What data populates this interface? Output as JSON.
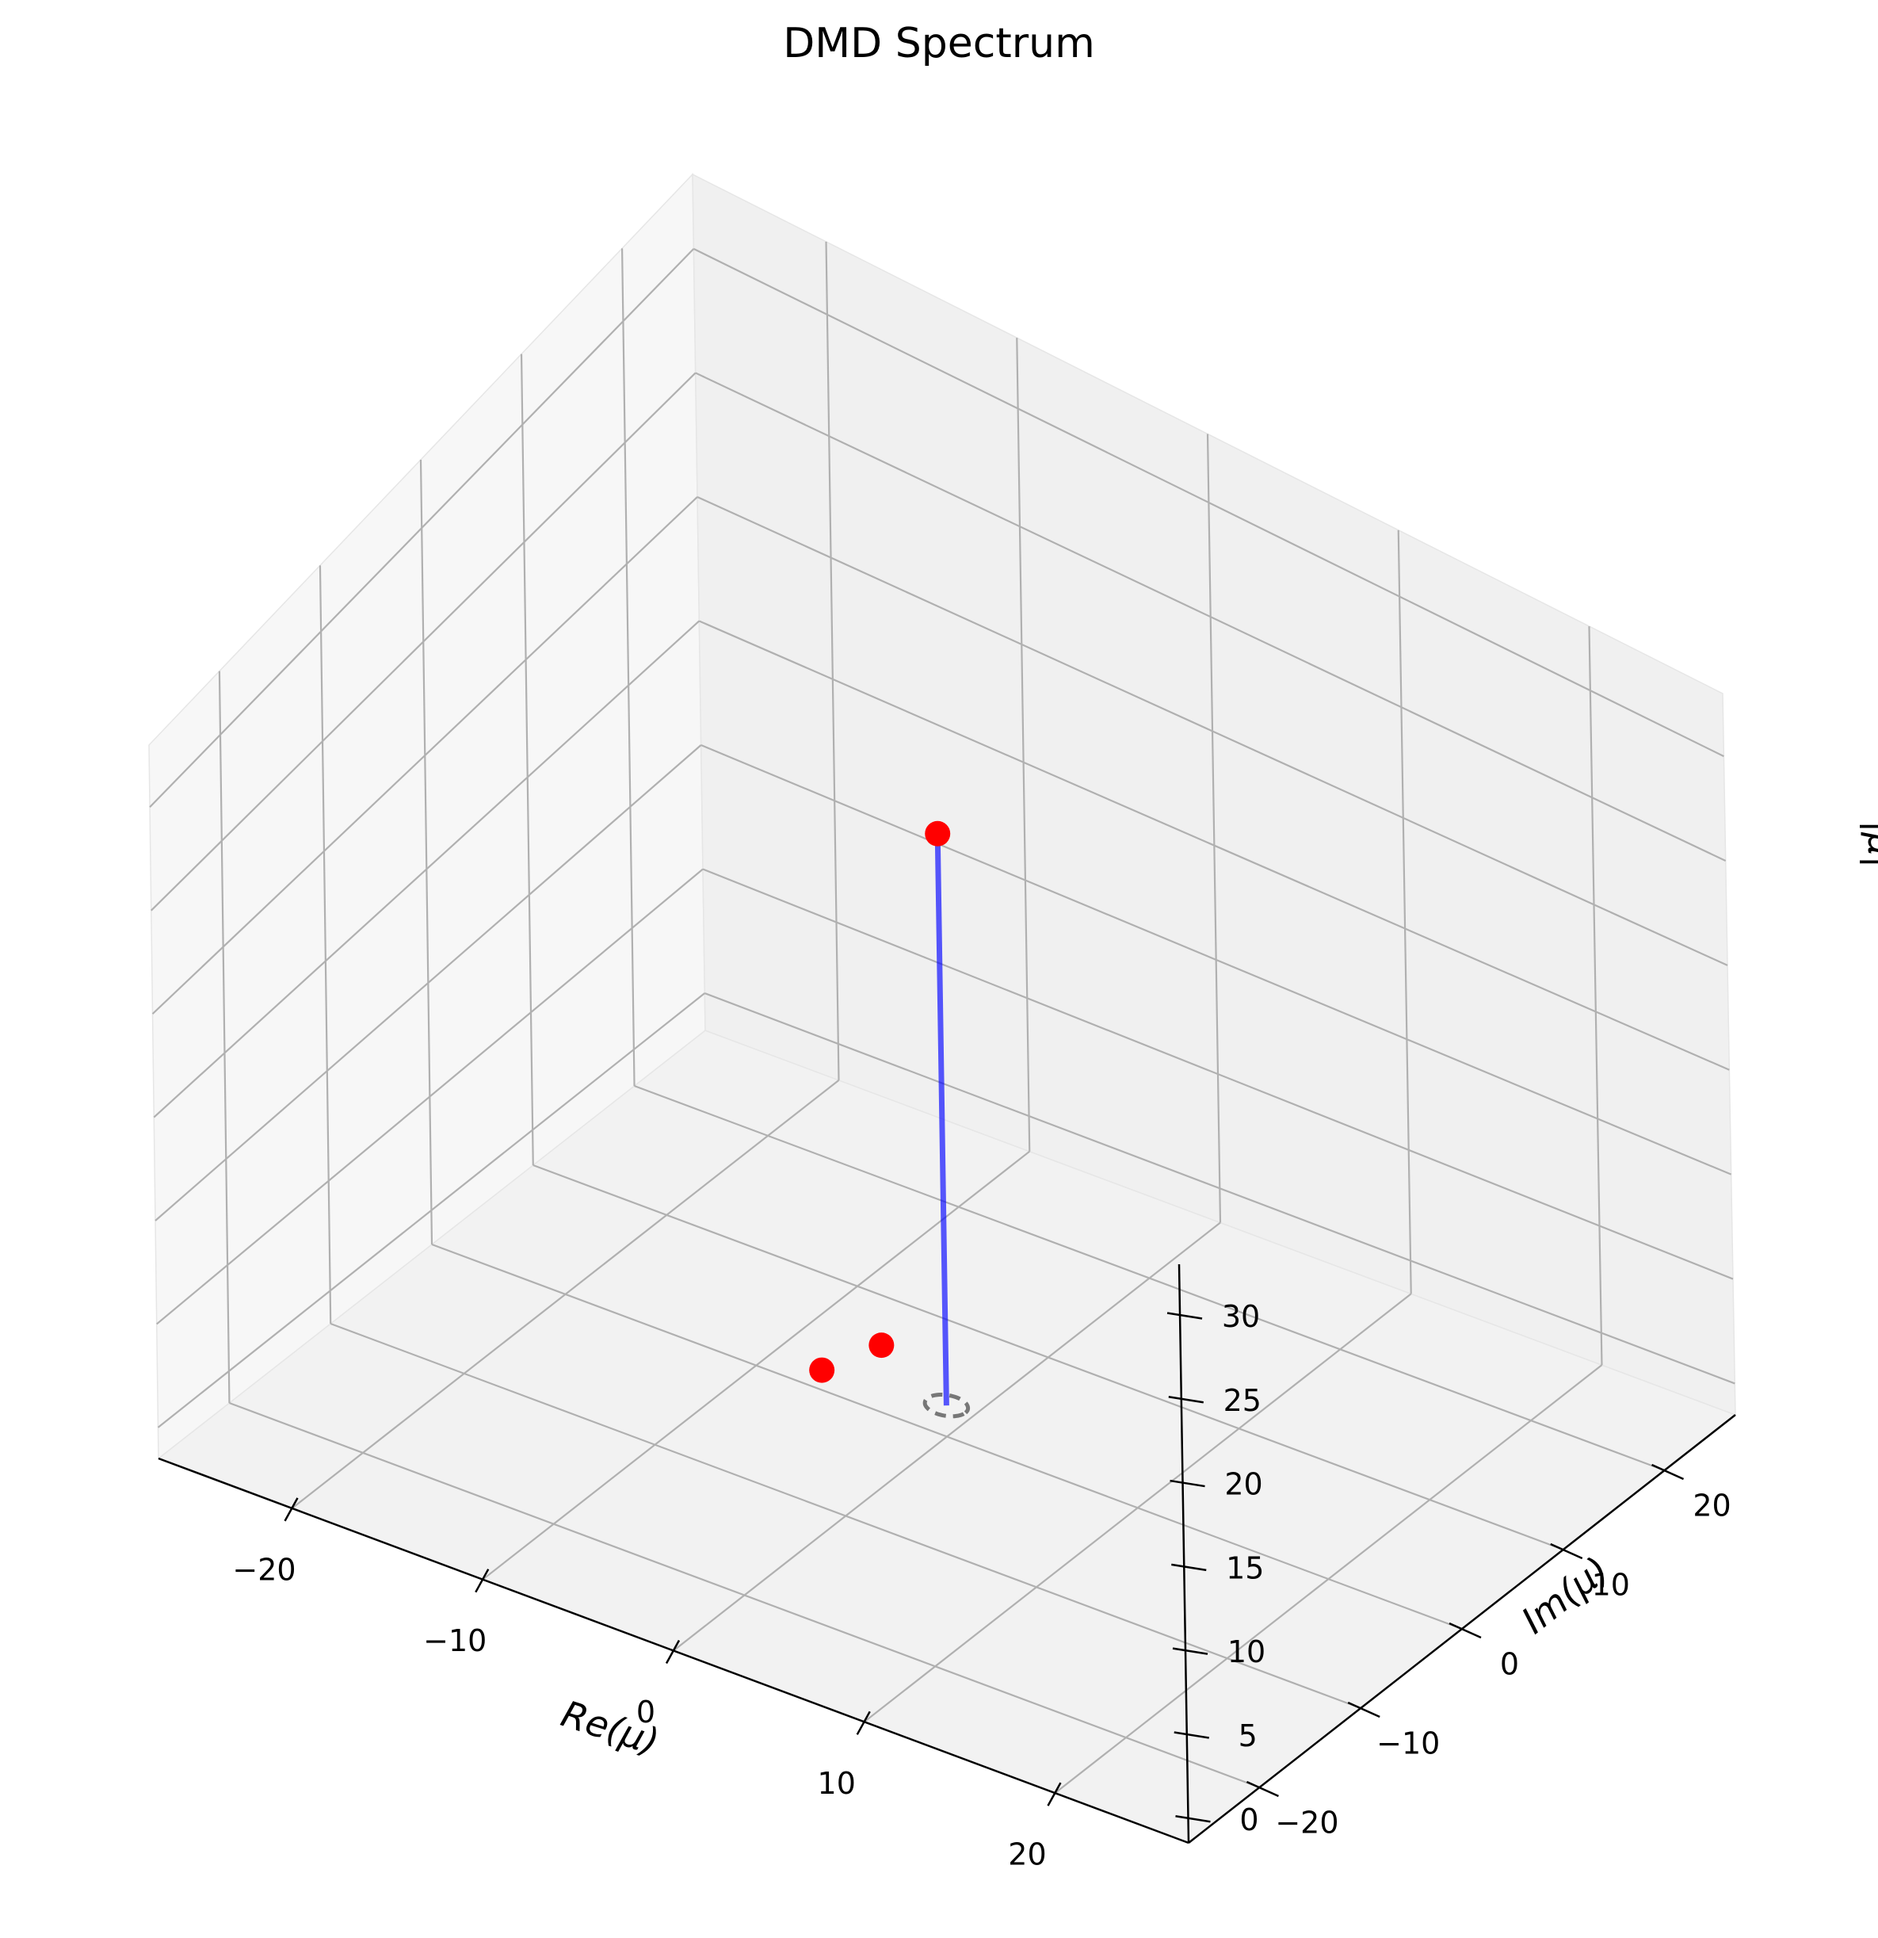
{
  "chart_data": {
    "type": "scatter",
    "projection": "3d",
    "title": "DMD Spectrum",
    "xlabel": "Re(μ)",
    "ylabel": "Im(μ)",
    "zlabel": "|μ|",
    "xlim": [
      -27,
      27
    ],
    "ylim": [
      -27,
      27
    ],
    "zlim": [
      -1.5,
      33
    ],
    "xticks": [
      -20,
      -10,
      0,
      10,
      20
    ],
    "yticks": [
      -20,
      -10,
      0,
      10,
      20
    ],
    "zticks": [
      0,
      5,
      10,
      15,
      20,
      25,
      30
    ],
    "xtick_labels": [
      "−20",
      "−10",
      "0",
      "10",
      "20"
    ],
    "ytick_labels": [
      "−20",
      "−10",
      "0",
      "10",
      "20"
    ],
    "ztick_labels": [
      "0",
      "5",
      "10",
      "15",
      "20",
      "25",
      "30"
    ],
    "grid": true,
    "series": [
      {
        "marker_color": "#ff0000",
        "points": [
          {
            "x": 0,
            "y": 0,
            "z": 27.5
          },
          {
            "x": -6,
            "y": -1,
            "z": 0
          },
          {
            "x": -5,
            "y": 3,
            "z": 0
          }
        ]
      }
    ],
    "stem": {
      "x": 0,
      "y": 0,
      "z_from": 0,
      "z_to": 27.5,
      "color": "#0000ff"
    },
    "unit_circle": {
      "radius": 1,
      "z": 0,
      "color": "#777777",
      "style": "dashed"
    },
    "pane_colors": {
      "floor": "#f2f2f2",
      "left_wall": "#f7f7f7",
      "back_wall": "#f0f0f0"
    },
    "grid_color": "#b0b0b0"
  }
}
